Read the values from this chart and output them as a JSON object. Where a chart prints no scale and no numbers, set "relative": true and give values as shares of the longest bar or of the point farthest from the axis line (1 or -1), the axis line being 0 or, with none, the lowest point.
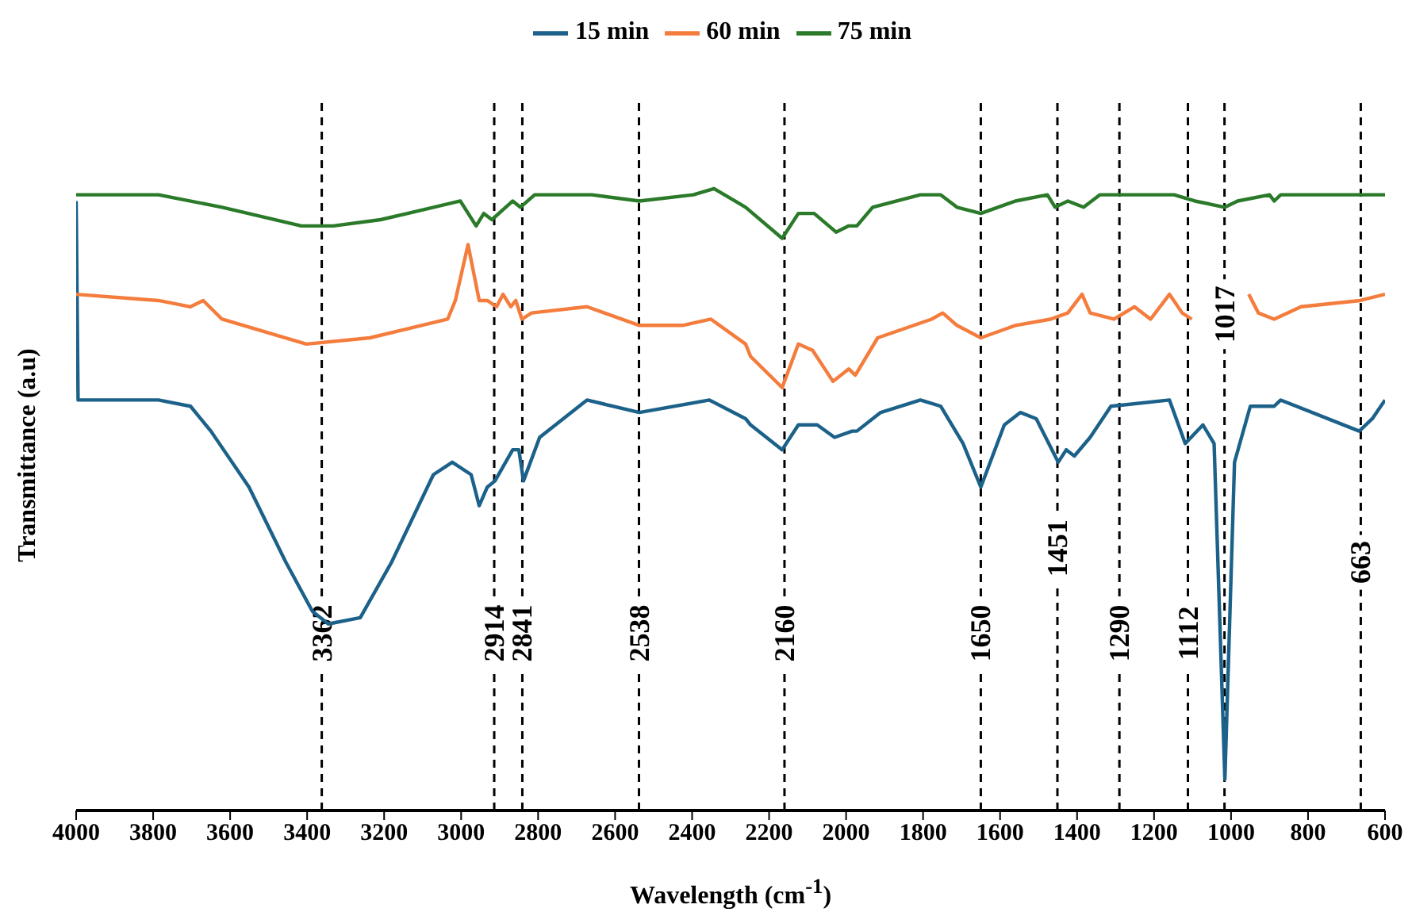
{
  "chart_data": {
    "type": "line",
    "relative": true,
    "xlabel": "Wavelength (cm$^{-1}$)",
    "ylabel": "Transmittance (a.u)",
    "legend": "top",
    "marker": "none",
    "xlim": [
      4000,
      600
    ],
    "xticks": [
      4000,
      3800,
      3600,
      3400,
      3200,
      3000,
      2800,
      2600,
      2400,
      2200,
      2000,
      1800,
      1600,
      1400,
      1200,
      1000,
      800,
      600
    ],
    "series": [
      {
        "name": "15 min",
        "color": "#1b6189",
        "x": [
          4000,
          3995,
          3786,
          3703,
          3650,
          3551,
          3456,
          3386,
          3345,
          3262,
          3180,
          3072,
          3023,
          2974,
          2953,
          2932,
          2912,
          2866,
          2850,
          2838,
          2796,
          2673,
          2537,
          2355,
          2261,
          2248,
          2166,
          2124,
          2075,
          2030,
          1984,
          1972,
          1910,
          1807,
          1754,
          1696,
          1650,
          1589,
          1547,
          1506,
          1449,
          1428,
          1407,
          1366,
          1312,
          1160,
          1119,
          1073,
          1044,
          1016,
          991,
          950,
          900,
          888,
          871,
          667,
          633,
          600
        ],
        "values": [
          0.98,
          0.66,
          0.66,
          0.65,
          0.61,
          0.52,
          0.4,
          0.32,
          0.3,
          0.31,
          0.4,
          0.54,
          0.56,
          0.54,
          0.49,
          0.52,
          0.53,
          0.58,
          0.58,
          0.53,
          0.6,
          0.66,
          0.64,
          0.66,
          0.63,
          0.62,
          0.58,
          0.62,
          0.62,
          0.6,
          0.61,
          0.61,
          0.64,
          0.66,
          0.65,
          0.59,
          0.52,
          0.62,
          0.64,
          0.63,
          0.56,
          0.58,
          0.57,
          0.6,
          0.65,
          0.66,
          0.59,
          0.62,
          0.59,
          0.05,
          0.56,
          0.65,
          0.65,
          0.65,
          0.66,
          0.61,
          0.63,
          0.66
        ]
      },
      {
        "name": "60 min",
        "color": "#f47c3c",
        "x": [
          4000,
          3786,
          3703,
          3670,
          3621,
          3402,
          3237,
          3035,
          3015,
          2982,
          2953,
          2932,
          2908,
          2891,
          2871,
          2858,
          2842,
          2817,
          2673,
          2537,
          2425,
          2351,
          2261,
          2248,
          2166,
          2124,
          2087,
          2034,
          1993,
          1976,
          1918,
          1778,
          1749,
          1712,
          1650,
          1560,
          1469,
          1424,
          1387,
          1366,
          1304,
          1251,
          1209,
          1160,
          1127,
          1102,
          1030,
          954,
          929,
          888,
          818,
          665,
          600
        ],
        "values": [
          0.83,
          0.82,
          0.81,
          0.82,
          0.79,
          0.75,
          0.76,
          0.79,
          0.82,
          0.91,
          0.82,
          0.82,
          0.81,
          0.83,
          0.81,
          0.82,
          0.79,
          0.8,
          0.81,
          0.78,
          0.78,
          0.79,
          0.75,
          0.73,
          0.68,
          0.75,
          0.74,
          0.69,
          0.71,
          0.7,
          0.76,
          0.79,
          0.8,
          0.78,
          0.76,
          0.78,
          0.79,
          0.8,
          0.83,
          0.8,
          0.79,
          0.81,
          0.79,
          0.83,
          0.8,
          0.79,
          null,
          0.83,
          0.8,
          0.79,
          0.81,
          0.82,
          0.83
        ]
      },
      {
        "name": "75 min",
        "color": "#2a7a2a",
        "x": [
          4000,
          3786,
          3621,
          3415,
          3332,
          3209,
          3002,
          2961,
          2941,
          2920,
          2866,
          2846,
          2809,
          2660,
          2537,
          2397,
          2343,
          2261,
          2166,
          2124,
          2083,
          2026,
          1993,
          1972,
          1931,
          1807,
          1754,
          1712,
          1650,
          1560,
          1477,
          1457,
          1424,
          1383,
          1341,
          1148,
          1094,
          1016,
          983,
          900,
          888,
          871,
          600
        ],
        "values": [
          0.99,
          0.99,
          0.97,
          0.94,
          0.94,
          0.95,
          0.98,
          0.94,
          0.96,
          0.95,
          0.98,
          0.97,
          0.99,
          0.99,
          0.98,
          0.99,
          1.0,
          0.97,
          0.92,
          0.96,
          0.96,
          0.93,
          0.94,
          0.94,
          0.97,
          0.99,
          0.99,
          0.97,
          0.96,
          0.98,
          0.99,
          0.97,
          0.98,
          0.97,
          0.99,
          0.99,
          0.98,
          0.97,
          0.98,
          0.99,
          0.98,
          0.99,
          0.99
        ]
      }
    ],
    "ref_lines": [
      {
        "axis": "x",
        "value": 3362,
        "label": "3362",
        "line_style": "dashed"
      },
      {
        "axis": "x",
        "value": 2914,
        "label": "2914",
        "line_style": "dashed"
      },
      {
        "axis": "x",
        "value": 2841,
        "label": "2841",
        "line_style": "dashed"
      },
      {
        "axis": "x",
        "value": 2538,
        "label": "2538",
        "line_style": "dashed"
      },
      {
        "axis": "x",
        "value": 2160,
        "label": "2160",
        "line_style": "dashed"
      },
      {
        "axis": "x",
        "value": 1650,
        "label": "1650",
        "line_style": "dashed"
      },
      {
        "axis": "x",
        "value": 1451,
        "label": "1451",
        "line_style": "dashed"
      },
      {
        "axis": "x",
        "value": 1290,
        "label": "1290",
        "line_style": "dashed"
      },
      {
        "axis": "x",
        "value": 1112,
        "label": "1112",
        "line_style": "dashed"
      },
      {
        "axis": "x",
        "value": 1017,
        "label": "1017",
        "line_style": "dashed"
      },
      {
        "axis": "x",
        "value": 663,
        "label": "663",
        "line_style": "dashed"
      }
    ]
  }
}
